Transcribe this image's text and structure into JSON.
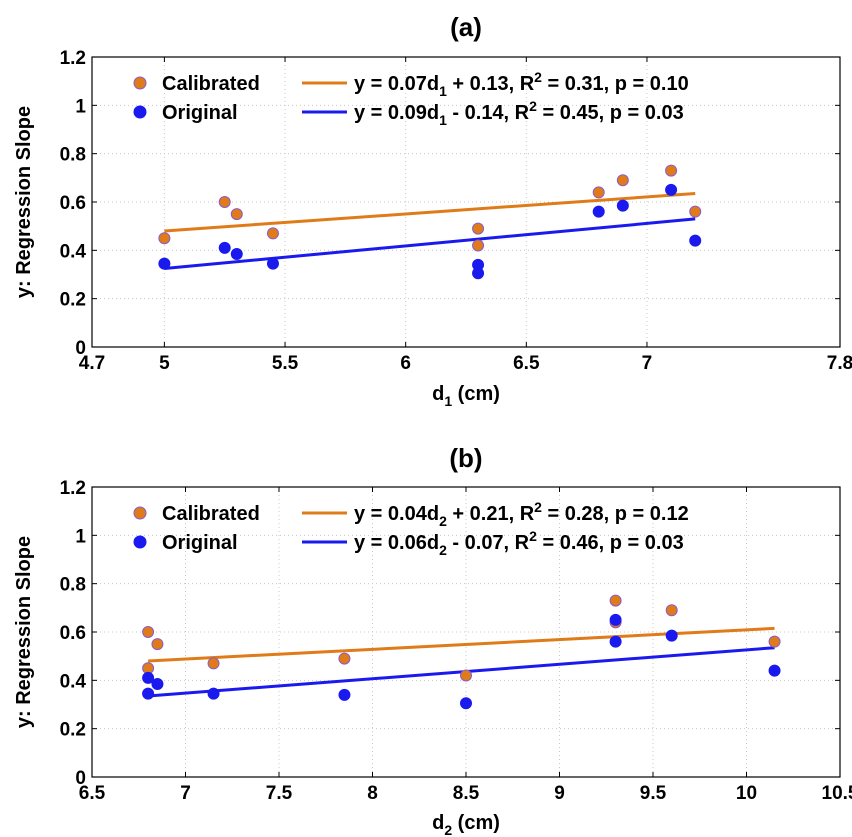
{
  "chart_data": [
    {
      "type": "scatter",
      "title": "(a)",
      "xlabel": "d",
      "xlabel_sub": "1",
      "xlabel_unit": " (cm)",
      "ylabel": "y: Regression Slope",
      "xlim": [
        4.7,
        7.8
      ],
      "ylim": [
        0,
        1.2
      ],
      "xticks": [
        "4.7",
        "5",
        "5.5",
        "6",
        "6.5",
        "7",
        "7.8"
      ],
      "xtick_values": [
        4.7,
        5,
        5.5,
        6,
        6.5,
        7,
        7.8
      ],
      "yticks": [
        "0",
        "0.2",
        "0.4",
        "0.6",
        "0.8",
        "1",
        "1.2"
      ],
      "ytick_values": [
        0,
        0.2,
        0.4,
        0.6,
        0.8,
        1,
        1.2
      ],
      "grid": true,
      "legend_position": "top-left",
      "series": [
        {
          "name": "Calibrated",
          "color": "#e07b1a",
          "edge": "#8a5cc8",
          "x": [
            5.0,
            5.25,
            5.3,
            5.45,
            6.3,
            6.3,
            6.8,
            6.9,
            7.1,
            7.2
          ],
          "y": [
            0.45,
            0.6,
            0.55,
            0.47,
            0.49,
            0.42,
            0.64,
            0.69,
            0.73,
            0.56
          ],
          "fit": {
            "x": [
              5.0,
              7.2
            ],
            "y": [
              0.48,
              0.635
            ],
            "label": [
              {
                "t": "y = 0.07d"
              },
              {
                "t": "1",
                "sub": true
              },
              {
                "t": " + 0.13, R"
              },
              {
                "t": "2",
                "sup": true
              },
              {
                "t": " = 0.31, p = 0.10"
              }
            ]
          }
        },
        {
          "name": "Original",
          "color": "#1a1aee",
          "edge": "#1a1aee",
          "x": [
            5.0,
            5.25,
            5.3,
            5.45,
            6.3,
            6.3,
            6.8,
            6.9,
            7.1,
            7.2
          ],
          "y": [
            0.345,
            0.41,
            0.385,
            0.345,
            0.34,
            0.305,
            0.56,
            0.585,
            0.65,
            0.44
          ],
          "fit": {
            "x": [
              5.0,
              7.2
            ],
            "y": [
              0.325,
              0.53
            ],
            "label": [
              {
                "t": "y = 0.09d"
              },
              {
                "t": "1",
                "sub": true
              },
              {
                "t": " - 0.14, R"
              },
              {
                "t": "2",
                "sup": true
              },
              {
                "t": " = 0.45, p = 0.03"
              }
            ]
          }
        }
      ]
    },
    {
      "type": "scatter",
      "title": "(b)",
      "xlabel": "d",
      "xlabel_sub": "2",
      "xlabel_unit": " (cm)",
      "ylabel": "y: Regression Slope",
      "xlim": [
        6.5,
        10.5
      ],
      "ylim": [
        0,
        1.2
      ],
      "xticks": [
        "6.5",
        "7",
        "7.5",
        "8",
        "8.5",
        "9",
        "9.5",
        "10",
        "10.5"
      ],
      "xtick_values": [
        6.5,
        7,
        7.5,
        8,
        8.5,
        9,
        9.5,
        10,
        10.5
      ],
      "yticks": [
        "0",
        "0.2",
        "0.4",
        "0.6",
        "0.8",
        "1",
        "1.2"
      ],
      "ytick_values": [
        0,
        0.2,
        0.4,
        0.6,
        0.8,
        1,
        1.2
      ],
      "grid": true,
      "legend_position": "top-left",
      "series": [
        {
          "name": "Calibrated",
          "color": "#e07b1a",
          "edge": "#8a5cc8",
          "x": [
            6.8,
            6.8,
            6.85,
            7.15,
            7.85,
            8.5,
            9.3,
            9.3,
            9.6,
            10.15
          ],
          "y": [
            0.6,
            0.45,
            0.55,
            0.47,
            0.49,
            0.42,
            0.73,
            0.64,
            0.69,
            0.56
          ],
          "fit": {
            "x": [
              6.8,
              10.15
            ],
            "y": [
              0.48,
              0.615
            ],
            "label": [
              {
                "t": "y = 0.04d"
              },
              {
                "t": "2",
                "sub": true
              },
              {
                "t": " + 0.21, R"
              },
              {
                "t": "2",
                "sup": true
              },
              {
                "t": " = 0.28, p = 0.12"
              }
            ]
          }
        },
        {
          "name": "Original",
          "color": "#1a1aee",
          "edge": "#1a1aee",
          "x": [
            6.8,
            6.8,
            6.85,
            7.15,
            7.85,
            8.5,
            9.3,
            9.3,
            9.6,
            10.15
          ],
          "y": [
            0.41,
            0.345,
            0.385,
            0.345,
            0.34,
            0.305,
            0.65,
            0.56,
            0.585,
            0.44
          ],
          "fit": {
            "x": [
              6.8,
              10.15
            ],
            "y": [
              0.335,
              0.535
            ],
            "label": [
              {
                "t": "y = 0.06d"
              },
              {
                "t": "2",
                "sub": true
              },
              {
                "t": " - 0.07, R"
              },
              {
                "t": "2",
                "sup": true
              },
              {
                "t": " = 0.46, p = 0.03"
              }
            ]
          }
        }
      ]
    }
  ]
}
